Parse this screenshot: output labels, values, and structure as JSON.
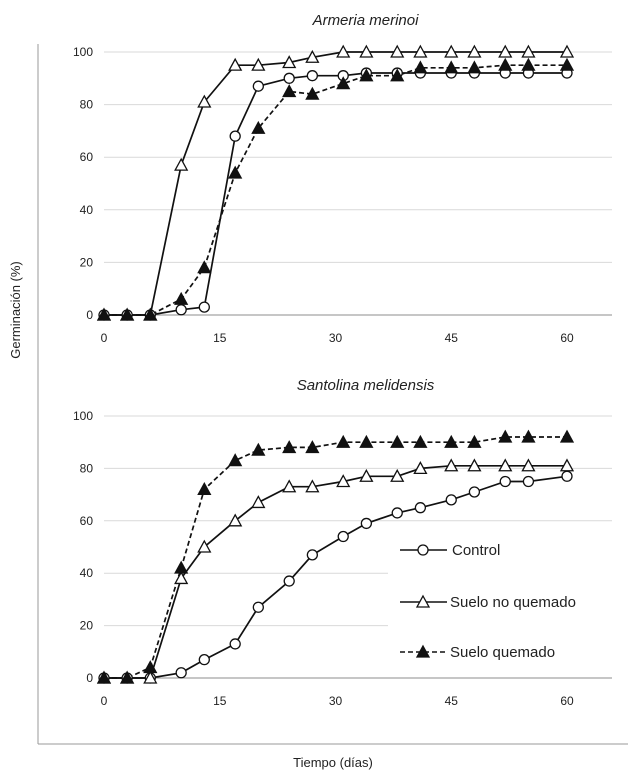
{
  "figure": {
    "ylabel": "Germinación (%)",
    "xlabel": "Tiempo (días)"
  },
  "legend": {
    "items": [
      "Control",
      "Suelo no quemado",
      "Suelo quemado"
    ]
  },
  "chart_data": [
    {
      "type": "line",
      "title": "Armeria merinoi",
      "xlabel": "Tiempo (días)",
      "ylabel": "Germinación (%)",
      "xlim": [
        0,
        60
      ],
      "ylim": [
        0,
        100
      ],
      "xticks": [
        0,
        15,
        30,
        45,
        60
      ],
      "yticks": [
        0,
        20,
        40,
        60,
        80,
        100
      ],
      "grid": "horizontal",
      "series": [
        {
          "name": "Control",
          "marker": "open-circle",
          "linestyle": "solid",
          "points": [
            [
              0,
              0
            ],
            [
              3,
              0
            ],
            [
              6,
              0
            ],
            [
              10,
              2
            ],
            [
              13,
              3
            ],
            [
              17,
              68
            ],
            [
              20,
              87
            ],
            [
              24,
              90
            ],
            [
              27,
              91
            ],
            [
              31,
              91
            ],
            [
              34,
              92
            ],
            [
              38,
              92
            ],
            [
              41,
              92
            ],
            [
              45,
              92
            ],
            [
              48,
              92
            ],
            [
              52,
              92
            ],
            [
              55,
              92
            ],
            [
              60,
              92
            ]
          ]
        },
        {
          "name": "Suelo no quemado",
          "marker": "open-triangle",
          "linestyle": "solid",
          "points": [
            [
              0,
              0
            ],
            [
              3,
              0
            ],
            [
              6,
              0
            ],
            [
              10,
              57
            ],
            [
              13,
              81
            ],
            [
              17,
              95
            ],
            [
              20,
              95
            ],
            [
              24,
              96
            ],
            [
              27,
              98
            ],
            [
              31,
              100
            ],
            [
              34,
              100
            ],
            [
              38,
              100
            ],
            [
              41,
              100
            ],
            [
              45,
              100
            ],
            [
              48,
              100
            ],
            [
              52,
              100
            ],
            [
              55,
              100
            ],
            [
              60,
              100
            ]
          ]
        },
        {
          "name": "Suelo quemado",
          "marker": "filled-triangle",
          "linestyle": "dashed",
          "points": [
            [
              0,
              0
            ],
            [
              3,
              0
            ],
            [
              6,
              0
            ],
            [
              10,
              6
            ],
            [
              13,
              18
            ],
            [
              17,
              54
            ],
            [
              20,
              71
            ],
            [
              24,
              85
            ],
            [
              27,
              84
            ],
            [
              31,
              88
            ],
            [
              34,
              91
            ],
            [
              38,
              91
            ],
            [
              41,
              94
            ],
            [
              45,
              94
            ],
            [
              48,
              94
            ],
            [
              52,
              95
            ],
            [
              55,
              95
            ],
            [
              60,
              95
            ]
          ]
        }
      ]
    },
    {
      "type": "line",
      "title": "Santolina melidensis",
      "xlabel": "Tiempo (días)",
      "ylabel": "Germinación (%)",
      "xlim": [
        0,
        60
      ],
      "ylim": [
        0,
        100
      ],
      "xticks": [
        0,
        15,
        30,
        45,
        60
      ],
      "yticks": [
        0,
        20,
        40,
        60,
        80,
        100
      ],
      "grid": "horizontal",
      "legend_position": "right",
      "series": [
        {
          "name": "Control",
          "marker": "open-circle",
          "linestyle": "solid",
          "points": [
            [
              0,
              0
            ],
            [
              3,
              0
            ],
            [
              6,
              0
            ],
            [
              10,
              2
            ],
            [
              13,
              7
            ],
            [
              17,
              13
            ],
            [
              20,
              27
            ],
            [
              24,
              37
            ],
            [
              27,
              47
            ],
            [
              31,
              54
            ],
            [
              34,
              59
            ],
            [
              38,
              63
            ],
            [
              41,
              65
            ],
            [
              45,
              68
            ],
            [
              48,
              71
            ],
            [
              52,
              75
            ],
            [
              55,
              75
            ],
            [
              60,
              77
            ]
          ]
        },
        {
          "name": "Suelo no quemado",
          "marker": "open-triangle",
          "linestyle": "solid",
          "points": [
            [
              0,
              0
            ],
            [
              3,
              0
            ],
            [
              6,
              0
            ],
            [
              10,
              38
            ],
            [
              13,
              50
            ],
            [
              17,
              60
            ],
            [
              20,
              67
            ],
            [
              24,
              73
            ],
            [
              27,
              73
            ],
            [
              31,
              75
            ],
            [
              34,
              77
            ],
            [
              38,
              77
            ],
            [
              41,
              80
            ],
            [
              45,
              81
            ],
            [
              48,
              81
            ],
            [
              52,
              81
            ],
            [
              55,
              81
            ],
            [
              60,
              81
            ]
          ]
        },
        {
          "name": "Suelo quemado",
          "marker": "filled-triangle",
          "linestyle": "dashed",
          "points": [
            [
              0,
              0
            ],
            [
              3,
              0
            ],
            [
              6,
              4
            ],
            [
              10,
              42
            ],
            [
              13,
              72
            ],
            [
              17,
              83
            ],
            [
              20,
              87
            ],
            [
              24,
              88
            ],
            [
              27,
              88
            ],
            [
              31,
              90
            ],
            [
              34,
              90
            ],
            [
              38,
              90
            ],
            [
              41,
              90
            ],
            [
              45,
              90
            ],
            [
              48,
              90
            ],
            [
              52,
              92
            ],
            [
              55,
              92
            ],
            [
              60,
              92
            ]
          ]
        }
      ]
    }
  ]
}
